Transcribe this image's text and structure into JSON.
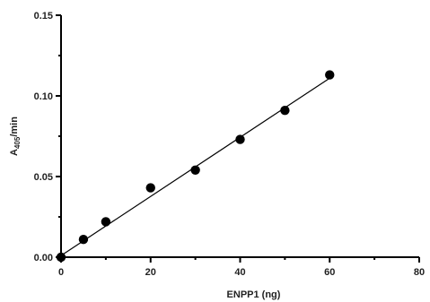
{
  "chart_data": {
    "type": "scatter",
    "title": "",
    "xlabel": "ENPP1 (ng)",
    "ylabel_main": "A",
    "ylabel_sub": "405",
    "ylabel_rest": "/min",
    "xlim": [
      0,
      80
    ],
    "ylim": [
      0,
      0.15
    ],
    "x_ticks": [
      {
        "value": 0,
        "label": "0"
      },
      {
        "value": 20,
        "label": "20"
      },
      {
        "value": 40,
        "label": "40"
      },
      {
        "value": 60,
        "label": "60"
      },
      {
        "value": 80,
        "label": "80"
      }
    ],
    "y_ticks": [
      {
        "value": 0,
        "label": "0.00"
      },
      {
        "value": 0.05,
        "label": "0.05"
      },
      {
        "value": 0.1,
        "label": "0.10"
      },
      {
        "value": 0.15,
        "label": "0.15"
      }
    ],
    "x_minor_ticks": [
      10,
      30,
      50,
      70
    ],
    "y_minor_ticks": [
      0.025,
      0.075,
      0.125
    ],
    "points": [
      {
        "x": 0,
        "y": 0.0
      },
      {
        "x": 5,
        "y": 0.011
      },
      {
        "x": 10,
        "y": 0.022
      },
      {
        "x": 20,
        "y": 0.043
      },
      {
        "x": 30,
        "y": 0.054
      },
      {
        "x": 40,
        "y": 0.073
      },
      {
        "x": 50,
        "y": 0.091
      },
      {
        "x": 60,
        "y": 0.113
      }
    ],
    "fit_line": {
      "x0": 0,
      "y0": 0.001,
      "x1": 60,
      "y1": 0.111
    },
    "grid": false,
    "legend": "none"
  }
}
